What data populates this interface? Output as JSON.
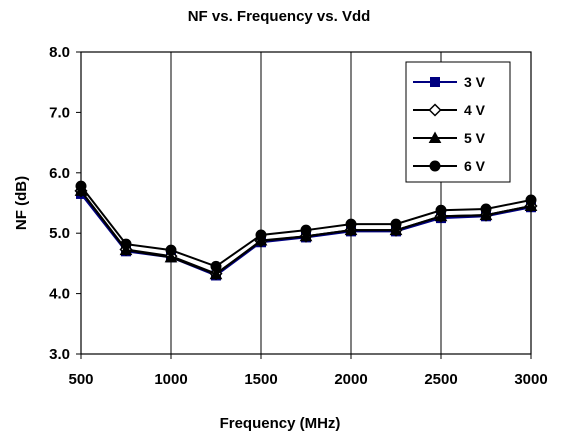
{
  "chart_data": {
    "type": "line",
    "title": "NF vs. Frequency vs. Vdd",
    "xlabel": "Frequency (MHz)",
    "ylabel": "NF (dB)",
    "x": [
      500,
      750,
      1000,
      1250,
      1500,
      1750,
      2000,
      2250,
      2500,
      2750,
      3000
    ],
    "xlim": [
      500,
      3000
    ],
    "ylim": [
      3.0,
      8.0
    ],
    "x_ticks": [
      "500",
      "1000",
      "1500",
      "2000",
      "2500",
      "3000"
    ],
    "y_ticks": [
      "3.0",
      "4.0",
      "5.0",
      "6.0",
      "7.0",
      "8.0"
    ],
    "grid": "vertical",
    "legend_position": "top-right",
    "series": [
      {
        "name": "3 V",
        "marker": "square",
        "color": "#000080",
        "values": [
          5.65,
          4.7,
          4.6,
          4.3,
          4.85,
          4.93,
          5.03,
          5.03,
          5.25,
          5.28,
          5.43
        ]
      },
      {
        "name": "4 V",
        "marker": "diamond",
        "color": "#000000",
        "values": [
          5.7,
          4.73,
          4.62,
          4.33,
          4.87,
          4.95,
          5.05,
          5.05,
          5.28,
          5.3,
          5.45
        ]
      },
      {
        "name": "5 V",
        "marker": "triangle",
        "color": "#000000",
        "values": [
          5.7,
          4.72,
          4.6,
          4.32,
          4.88,
          4.95,
          5.05,
          5.05,
          5.28,
          5.3,
          5.45
        ]
      },
      {
        "name": "6 V",
        "marker": "circle",
        "color": "#000000",
        "values": [
          5.78,
          4.82,
          4.72,
          4.45,
          4.97,
          5.05,
          5.15,
          5.15,
          5.38,
          5.4,
          5.55
        ]
      }
    ]
  }
}
